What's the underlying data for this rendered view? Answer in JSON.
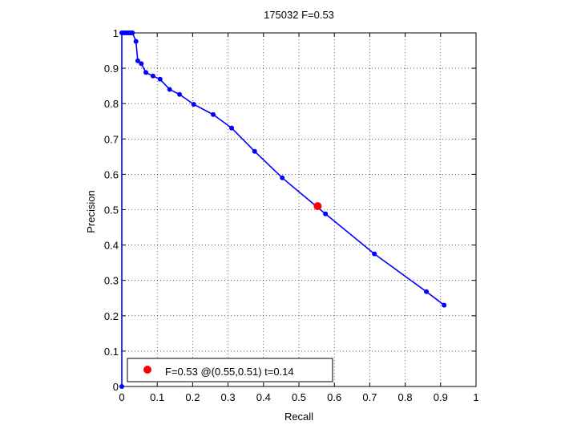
{
  "chart_data": {
    "type": "line",
    "title": "175032 F=0.53",
    "xlabel": "Recall",
    "ylabel": "Precision",
    "xlim": [
      0,
      1
    ],
    "ylim": [
      0,
      1
    ],
    "grid": true,
    "legend_position": "bottom-left",
    "xticks": [
      0,
      0.1,
      0.2,
      0.3,
      0.4,
      0.5,
      0.6,
      0.7,
      0.8,
      0.9,
      1
    ],
    "xtick_labels": [
      "0",
      "0.1",
      "0.2",
      "0.3",
      "0.4",
      "0.5",
      "0.6",
      "0.7",
      "0.8",
      "0.9",
      "1"
    ],
    "yticks": [
      0,
      0.1,
      0.2,
      0.3,
      0.4,
      0.5,
      0.6,
      0.7,
      0.8,
      0.9,
      1
    ],
    "ytick_labels": [
      "0",
      "0.1",
      "0.2",
      "0.3",
      "0.4",
      "0.5",
      "0.6",
      "0.7",
      "0.8",
      "0.9",
      "1"
    ],
    "series": [
      {
        "color": "#0000ff",
        "marker": "dot",
        "x": [
          0,
          0,
          0.005,
          0.01,
          0.015,
          0.02,
          0.025,
          0.03,
          0.04,
          0.045,
          0.055,
          0.068,
          0.088,
          0.108,
          0.135,
          0.163,
          0.203,
          0.258,
          0.31,
          0.375,
          0.453,
          0.575,
          0.713,
          0.86,
          0.91
        ],
        "y": [
          0,
          1,
          1,
          1,
          1,
          1,
          1,
          1,
          0.976,
          0.921,
          0.913,
          0.888,
          0.878,
          0.869,
          0.84,
          0.826,
          0.798,
          0.769,
          0.731,
          0.665,
          0.59,
          0.488,
          0.375,
          0.268,
          0.23
        ]
      },
      {
        "color": "#ff0000",
        "marker": "big-dot",
        "x": [
          0.553
        ],
        "y": [
          0.51
        ]
      }
    ],
    "legend": [
      {
        "label": "F=0.53 @(0.55,0.51) t=0.14",
        "color": "#ff0000"
      }
    ]
  }
}
